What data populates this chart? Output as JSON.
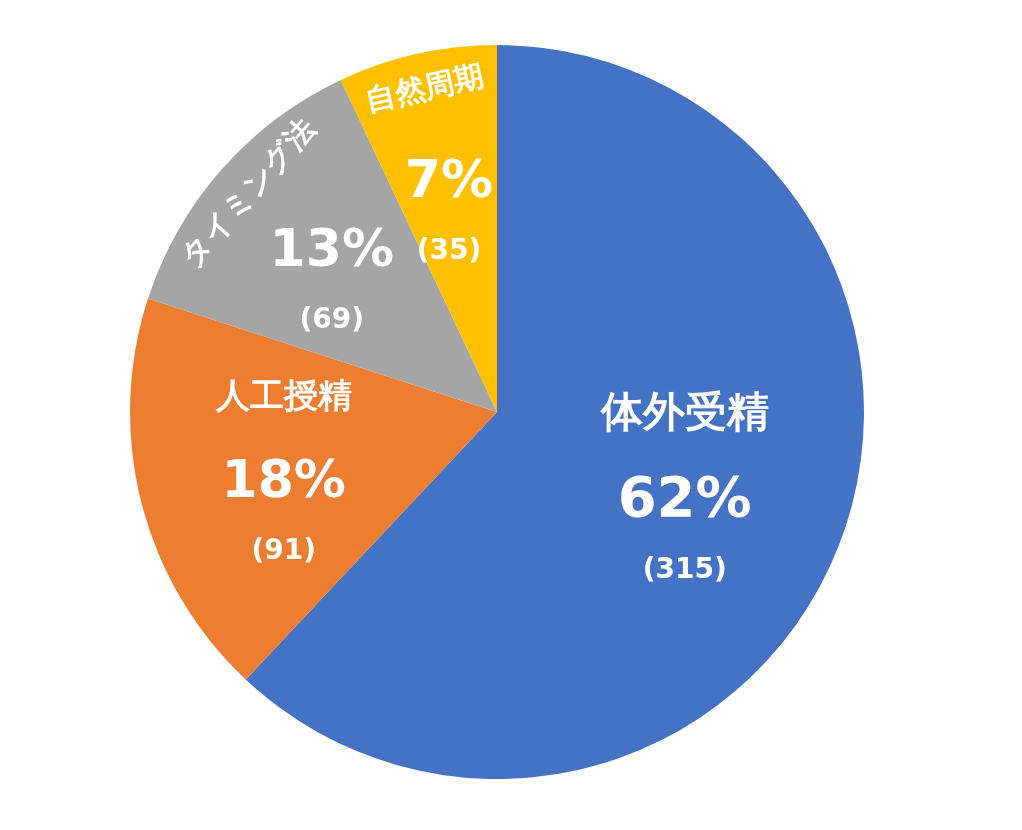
{
  "chart_data": {
    "type": "pie",
    "categories": [
      "体外受精",
      "人工授精",
      "タイミング法",
      "自然周期"
    ],
    "values": [
      62,
      18,
      13,
      7
    ],
    "colors": [
      "#4472c4",
      "#ed7d31",
      "#a5a5a5",
      "#ffc000"
    ],
    "value_labels": [
      "62%\n(315)",
      "18%\n(91)",
      "13%\n(69)",
      "7%\n(35)"
    ]
  }
}
